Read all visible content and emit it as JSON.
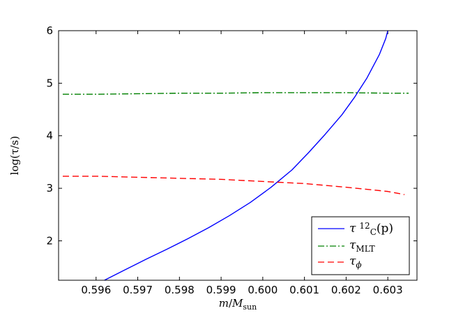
{
  "chart_data": {
    "type": "line",
    "xlabel": {
      "main": "m",
      "sep": "/",
      "base": "M",
      "sub": "sun"
    },
    "ylabel": "log(τ/s)",
    "xlim": [
      0.5951,
      0.6037
    ],
    "ylim": [
      1.25,
      6.0
    ],
    "xticks": [
      0.596,
      0.597,
      0.598,
      0.599,
      0.6,
      0.601,
      0.602,
      0.603
    ],
    "xtick_labels": [
      "0.596",
      "0.597",
      "0.598",
      "0.599",
      "0.600",
      "0.601",
      "0.602",
      "0.603"
    ],
    "yticks": [
      2,
      3,
      4,
      5,
      6
    ],
    "ytick_labels": [
      "2",
      "3",
      "4",
      "5",
      "6"
    ],
    "grid": false,
    "legend_position": "lower-right",
    "series": [
      {
        "legend": {
          "tau": "τ",
          "sup": "12",
          "sub": "C",
          "tail": "(p)"
        },
        "color": "#0000ff",
        "dash": "",
        "x": [
          0.5962,
          0.5967,
          0.5972,
          0.5977,
          0.5982,
          0.5987,
          0.5992,
          0.5997,
          0.6002,
          0.6007,
          0.6011,
          0.6015,
          0.6019,
          0.6022,
          0.6025,
          0.6028,
          0.60295,
          0.603
        ],
        "y": [
          1.25,
          1.45,
          1.65,
          1.84,
          2.04,
          2.25,
          2.48,
          2.73,
          3.02,
          3.35,
          3.68,
          4.03,
          4.4,
          4.73,
          5.1,
          5.55,
          5.85,
          6.0
        ]
      },
      {
        "legend": {
          "tau": "τ",
          "sub": "MLT"
        },
        "color": "#008000",
        "dash": "9,3,2,3",
        "x": [
          0.5952,
          0.596,
          0.597,
          0.598,
          0.599,
          0.6,
          0.601,
          0.602,
          0.603,
          0.6035
        ],
        "y": [
          4.79,
          4.79,
          4.8,
          4.81,
          4.81,
          4.82,
          4.82,
          4.82,
          4.81,
          4.81
        ]
      },
      {
        "legend": {
          "tau": "τ",
          "sub": "ϕ"
        },
        "color": "#ff0000",
        "dash": "9,5",
        "x": [
          0.5952,
          0.596,
          0.597,
          0.598,
          0.599,
          0.6,
          0.601,
          0.602,
          0.603,
          0.6034
        ],
        "y": [
          3.23,
          3.23,
          3.21,
          3.19,
          3.17,
          3.13,
          3.09,
          3.02,
          2.94,
          2.88
        ]
      }
    ]
  }
}
